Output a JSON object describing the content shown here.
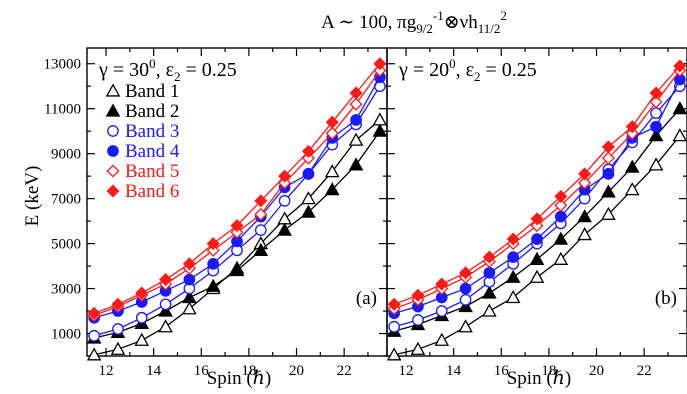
{
  "title_parts": {
    "prefix": "A ∼ 100, πg",
    "sub1": "9/2",
    "sup1": "-1",
    "mid": "⊗νh",
    "sub2": "11/2",
    "sup2": "2"
  },
  "ylabel": "E (keV)",
  "xlabel_text": "Spin (",
  "xlabel_hbar": "ℏ",
  "xlabel_close": ")",
  "series_styles": [
    {
      "name": "Band 1",
      "color": "#000000",
      "marker": "triangle",
      "fill": "open"
    },
    {
      "name": "Band 2",
      "color": "#000000",
      "marker": "triangle",
      "fill": "filled"
    },
    {
      "name": "Band 3",
      "color": "#1a1aff",
      "marker": "circle",
      "fill": "open"
    },
    {
      "name": "Band 4",
      "color": "#1a1aff",
      "marker": "circle",
      "fill": "filled"
    },
    {
      "name": "Band 5",
      "color": "#ff1a1a",
      "marker": "diamond",
      "fill": "open"
    },
    {
      "name": "Band 6",
      "color": "#ff1a1a",
      "marker": "diamond",
      "fill": "filled"
    }
  ],
  "chart_data": [
    {
      "type": "line",
      "panel_label": "(a)",
      "annotation": {
        "gamma": "γ = 30",
        "deg": "0",
        "eps": ", ε",
        "eps_sub": "2",
        "eps_val": " = 0.25"
      },
      "xlabel": "Spin (ℏ)",
      "ylabel": "E (keV)",
      "xlim": [
        11.2,
        23.8
      ],
      "ylim": [
        0,
        13700
      ],
      "xticks": [
        12,
        14,
        16,
        18,
        20,
        22
      ],
      "yticks": [
        1000,
        3000,
        5000,
        7000,
        9000,
        11000,
        13000
      ],
      "legend": "top-left",
      "series": [
        {
          "name": "Band 1",
          "x": [
            11.5,
            12.5,
            13.5,
            14.5,
            15.5,
            16.5,
            17.5,
            18.5,
            19.5,
            20.5,
            21.5,
            22.5,
            23.5
          ],
          "y": [
            50,
            300,
            700,
            1300,
            2100,
            3000,
            3900,
            5000,
            6100,
            7000,
            8200,
            9600,
            10500
          ]
        },
        {
          "name": "Band 2",
          "x": [
            11.5,
            12.5,
            13.5,
            14.5,
            15.5,
            16.5,
            17.5,
            18.5,
            19.5,
            20.5,
            21.5,
            22.5,
            23.5
          ],
          "y": [
            800,
            1050,
            1450,
            2000,
            2600,
            3100,
            3800,
            4700,
            5600,
            6400,
            7400,
            8500,
            10000
          ]
        },
        {
          "name": "Band 3",
          "x": [
            11.5,
            12.5,
            13.5,
            14.5,
            15.5,
            16.5,
            17.5,
            18.5,
            19.5,
            20.5,
            21.5,
            22.5,
            23.5
          ],
          "y": [
            900,
            1200,
            1700,
            2300,
            3000,
            3800,
            4700,
            5600,
            6900,
            8100,
            9400,
            10300,
            12000
          ]
        },
        {
          "name": "Band 4",
          "x": [
            11.5,
            12.5,
            13.5,
            14.5,
            15.5,
            16.5,
            17.5,
            18.5,
            19.5,
            20.5,
            21.5,
            22.5,
            23.5
          ],
          "y": [
            1700,
            2000,
            2400,
            2900,
            3400,
            4100,
            5100,
            6200,
            7500,
            8100,
            9700,
            10500,
            12400
          ]
        },
        {
          "name": "Band 5",
          "x": [
            11.5,
            12.5,
            13.5,
            14.5,
            15.5,
            16.5,
            17.5,
            18.5,
            19.5,
            20.5,
            21.5,
            22.5,
            23.5
          ],
          "y": [
            1800,
            2200,
            2700,
            3200,
            3900,
            4700,
            5500,
            6300,
            7700,
            8800,
            9900,
            11200,
            12700
          ]
        },
        {
          "name": "Band 6",
          "x": [
            11.5,
            12.5,
            13.5,
            14.5,
            15.5,
            16.5,
            17.5,
            18.5,
            19.5,
            20.5,
            21.5,
            22.5,
            23.5
          ],
          "y": [
            1900,
            2300,
            2800,
            3400,
            4100,
            5000,
            5800,
            6900,
            8000,
            9100,
            10400,
            11700,
            13000
          ]
        }
      ]
    },
    {
      "type": "line",
      "panel_label": "(b)",
      "annotation": {
        "gamma": "γ = 20",
        "deg": "0",
        "eps": ", ε",
        "eps_sub": "2",
        "eps_val": " = 0.25"
      },
      "xlabel": "Spin (ℏ)",
      "ylabel": "E (keV)",
      "xlim": [
        11.2,
        23.8
      ],
      "ylim": [
        0,
        13700
      ],
      "xticks": [
        12,
        14,
        16,
        18,
        20,
        22
      ],
      "yticks": [
        1000,
        3000,
        5000,
        7000,
        9000,
        11000,
        13000
      ],
      "legend": "none",
      "series": [
        {
          "name": "Band 1",
          "x": [
            11.5,
            12.5,
            13.5,
            14.5,
            15.5,
            16.5,
            17.5,
            18.5,
            19.5,
            20.5,
            21.5,
            22.5,
            23.5
          ],
          "y": [
            50,
            300,
            700,
            1300,
            2000,
            2600,
            3500,
            4300,
            5400,
            6300,
            7400,
            8500,
            9800
          ]
        },
        {
          "name": "Band 2",
          "x": [
            11.5,
            12.5,
            13.5,
            14.5,
            15.5,
            16.5,
            17.5,
            18.5,
            19.5,
            20.5,
            21.5,
            22.5,
            23.5
          ],
          "y": [
            1100,
            1400,
            1800,
            2200,
            2800,
            3500,
            4300,
            5200,
            6200,
            7300,
            8400,
            9800,
            11000
          ]
        },
        {
          "name": "Band 3",
          "x": [
            11.5,
            12.5,
            13.5,
            14.5,
            15.5,
            16.5,
            17.5,
            18.5,
            19.5,
            20.5,
            21.5,
            22.5,
            23.5
          ],
          "y": [
            1300,
            1600,
            2000,
            2500,
            3300,
            4100,
            5000,
            5900,
            7000,
            8300,
            9500,
            10800,
            12000
          ]
        },
        {
          "name": "Band 4",
          "x": [
            11.5,
            12.5,
            13.5,
            14.5,
            15.5,
            16.5,
            17.5,
            18.5,
            19.5,
            20.5,
            21.5,
            22.5,
            23.5
          ],
          "y": [
            1900,
            2200,
            2600,
            3000,
            3700,
            4400,
            5200,
            6200,
            7400,
            8100,
            9700,
            10200,
            12300
          ]
        },
        {
          "name": "Band 5",
          "x": [
            11.5,
            12.5,
            13.5,
            14.5,
            15.5,
            16.5,
            17.5,
            18.5,
            19.5,
            20.5,
            21.5,
            22.5,
            23.5
          ],
          "y": [
            2100,
            2500,
            3000,
            3500,
            4200,
            5000,
            5800,
            6700,
            7700,
            8800,
            9900,
            11300,
            12700
          ]
        },
        {
          "name": "Band 6",
          "x": [
            11.5,
            12.5,
            13.5,
            14.5,
            15.5,
            16.5,
            17.5,
            18.5,
            19.5,
            20.5,
            21.5,
            22.5,
            23.5
          ],
          "y": [
            2300,
            2700,
            3200,
            3700,
            4400,
            5200,
            6100,
            7100,
            8100,
            9300,
            10200,
            11700,
            12900
          ]
        }
      ]
    }
  ]
}
